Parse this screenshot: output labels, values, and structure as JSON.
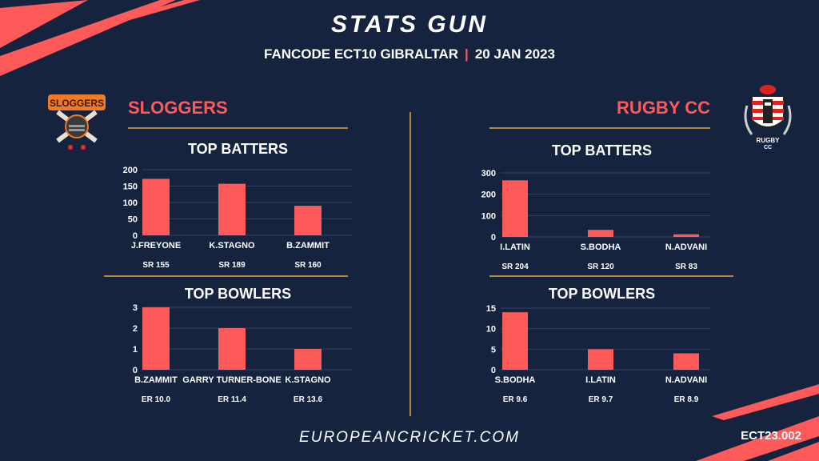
{
  "header": {
    "title": "STATS GUN",
    "subtitle_left": "FANCODE ECT10 GIBRALTAR",
    "subtitle_sep": "|",
    "subtitle_right": "20 JAN 2023"
  },
  "teams": {
    "left": {
      "name": "SLOGGERS",
      "logo_text": "SLOGGERS"
    },
    "right": {
      "name": "RUGBY CC",
      "logo_text_1": "RUGBY",
      "logo_text_2": "CC"
    }
  },
  "sections": {
    "batters_label": "TOP BATTERS",
    "bowlers_label": "TOP BOWLERS"
  },
  "footer": {
    "site": "EUROPEANCRICKET.COM",
    "code": "ECT23.002"
  },
  "colors": {
    "background": "#15233f",
    "accent": "#ff5a5a",
    "divider": "#b08a3e"
  },
  "chart_data": [
    {
      "id": "left_batters",
      "type": "bar",
      "title": "TOP BATTERS",
      "categories": [
        "J.FREYONE",
        "K.STAGNO",
        "B.ZAMMIT"
      ],
      "values": [
        172,
        157,
        90
      ],
      "sublabels": [
        "SR 155",
        "SR 189",
        "SR 160"
      ],
      "yticks": [
        0,
        50,
        100,
        150,
        200
      ],
      "ylim": [
        0,
        200
      ]
    },
    {
      "id": "left_bowlers",
      "type": "bar",
      "title": "TOP BOWLERS",
      "categories": [
        "B.ZAMMIT",
        "GARRY TURNER-BONE",
        "K.STAGNO"
      ],
      "values": [
        3,
        2,
        1
      ],
      "sublabels": [
        "ER 10.0",
        "ER 11.4",
        "ER 13.6"
      ],
      "yticks": [
        0,
        1,
        2,
        3
      ],
      "ylim": [
        0,
        3
      ]
    },
    {
      "id": "right_batters",
      "type": "bar",
      "title": "TOP BATTERS",
      "categories": [
        "I.LATIN",
        "S.BODHA",
        "N.ADVANI"
      ],
      "values": [
        265,
        33,
        12
      ],
      "sublabels": [
        "SR 204",
        "SR 120",
        "SR 83"
      ],
      "yticks": [
        0,
        100,
        200,
        300
      ],
      "ylim": [
        0,
        300
      ]
    },
    {
      "id": "right_bowlers",
      "type": "bar",
      "title": "TOP BOWLERS",
      "categories": [
        "S.BODHA",
        "I.LATIN",
        "N.ADVANI"
      ],
      "values": [
        14,
        5,
        4
      ],
      "sublabels": [
        "ER 9.6",
        "ER 9.7",
        "ER 8.9"
      ],
      "yticks": [
        0,
        5,
        10,
        15
      ],
      "ylim": [
        0,
        15
      ]
    }
  ]
}
